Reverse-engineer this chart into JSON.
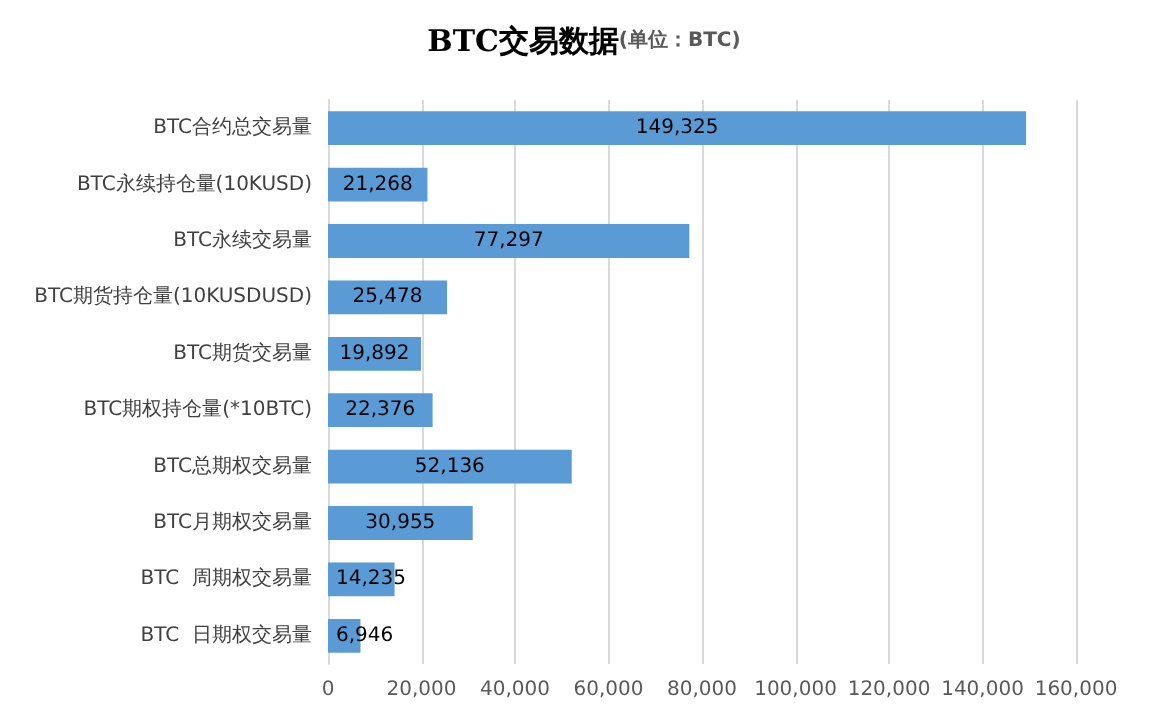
{
  "chart_data": {
    "type": "bar",
    "orientation": "horizontal",
    "title": "BTC交易数据",
    "subtitle": "(单位：BTC)",
    "categories": [
      "BTC合约总交易量",
      "BTC永续持仓量(10KUSD)",
      "BTC永续交易量",
      "BTC期货持仓量(10KUSDUSD)",
      "BTC期货交易量",
      "BTC期权持仓量(*10BTC)",
      "BTC总期权交易量",
      "BTC月期权交易量",
      "BTC  周期权交易量",
      "BTC  日期权交易量"
    ],
    "values": [
      149325,
      21268,
      77297,
      25478,
      19892,
      22376,
      52136,
      30955,
      14235,
      6946
    ],
    "value_labels": [
      "149,325",
      "21,268",
      "77,297",
      "25,478",
      "19,892",
      "22,376",
      "52,136",
      "30,955",
      "14,235",
      "6,946"
    ],
    "color": "#5b9bd5",
    "xlim": [
      0,
      160000
    ],
    "xticks": [
      {
        "value": 0,
        "label": "0"
      },
      {
        "value": 20000,
        "label": "20,000"
      },
      {
        "value": 40000,
        "label": "40,000"
      },
      {
        "value": 60000,
        "label": "60,000"
      },
      {
        "value": 80000,
        "label": "80,000"
      },
      {
        "value": 100000,
        "label": "100,000"
      },
      {
        "value": 120000,
        "label": "120,000"
      },
      {
        "value": 140000,
        "label": "140,000"
      },
      {
        "value": 160000,
        "label": "160,000"
      }
    ],
    "grid": "x"
  }
}
